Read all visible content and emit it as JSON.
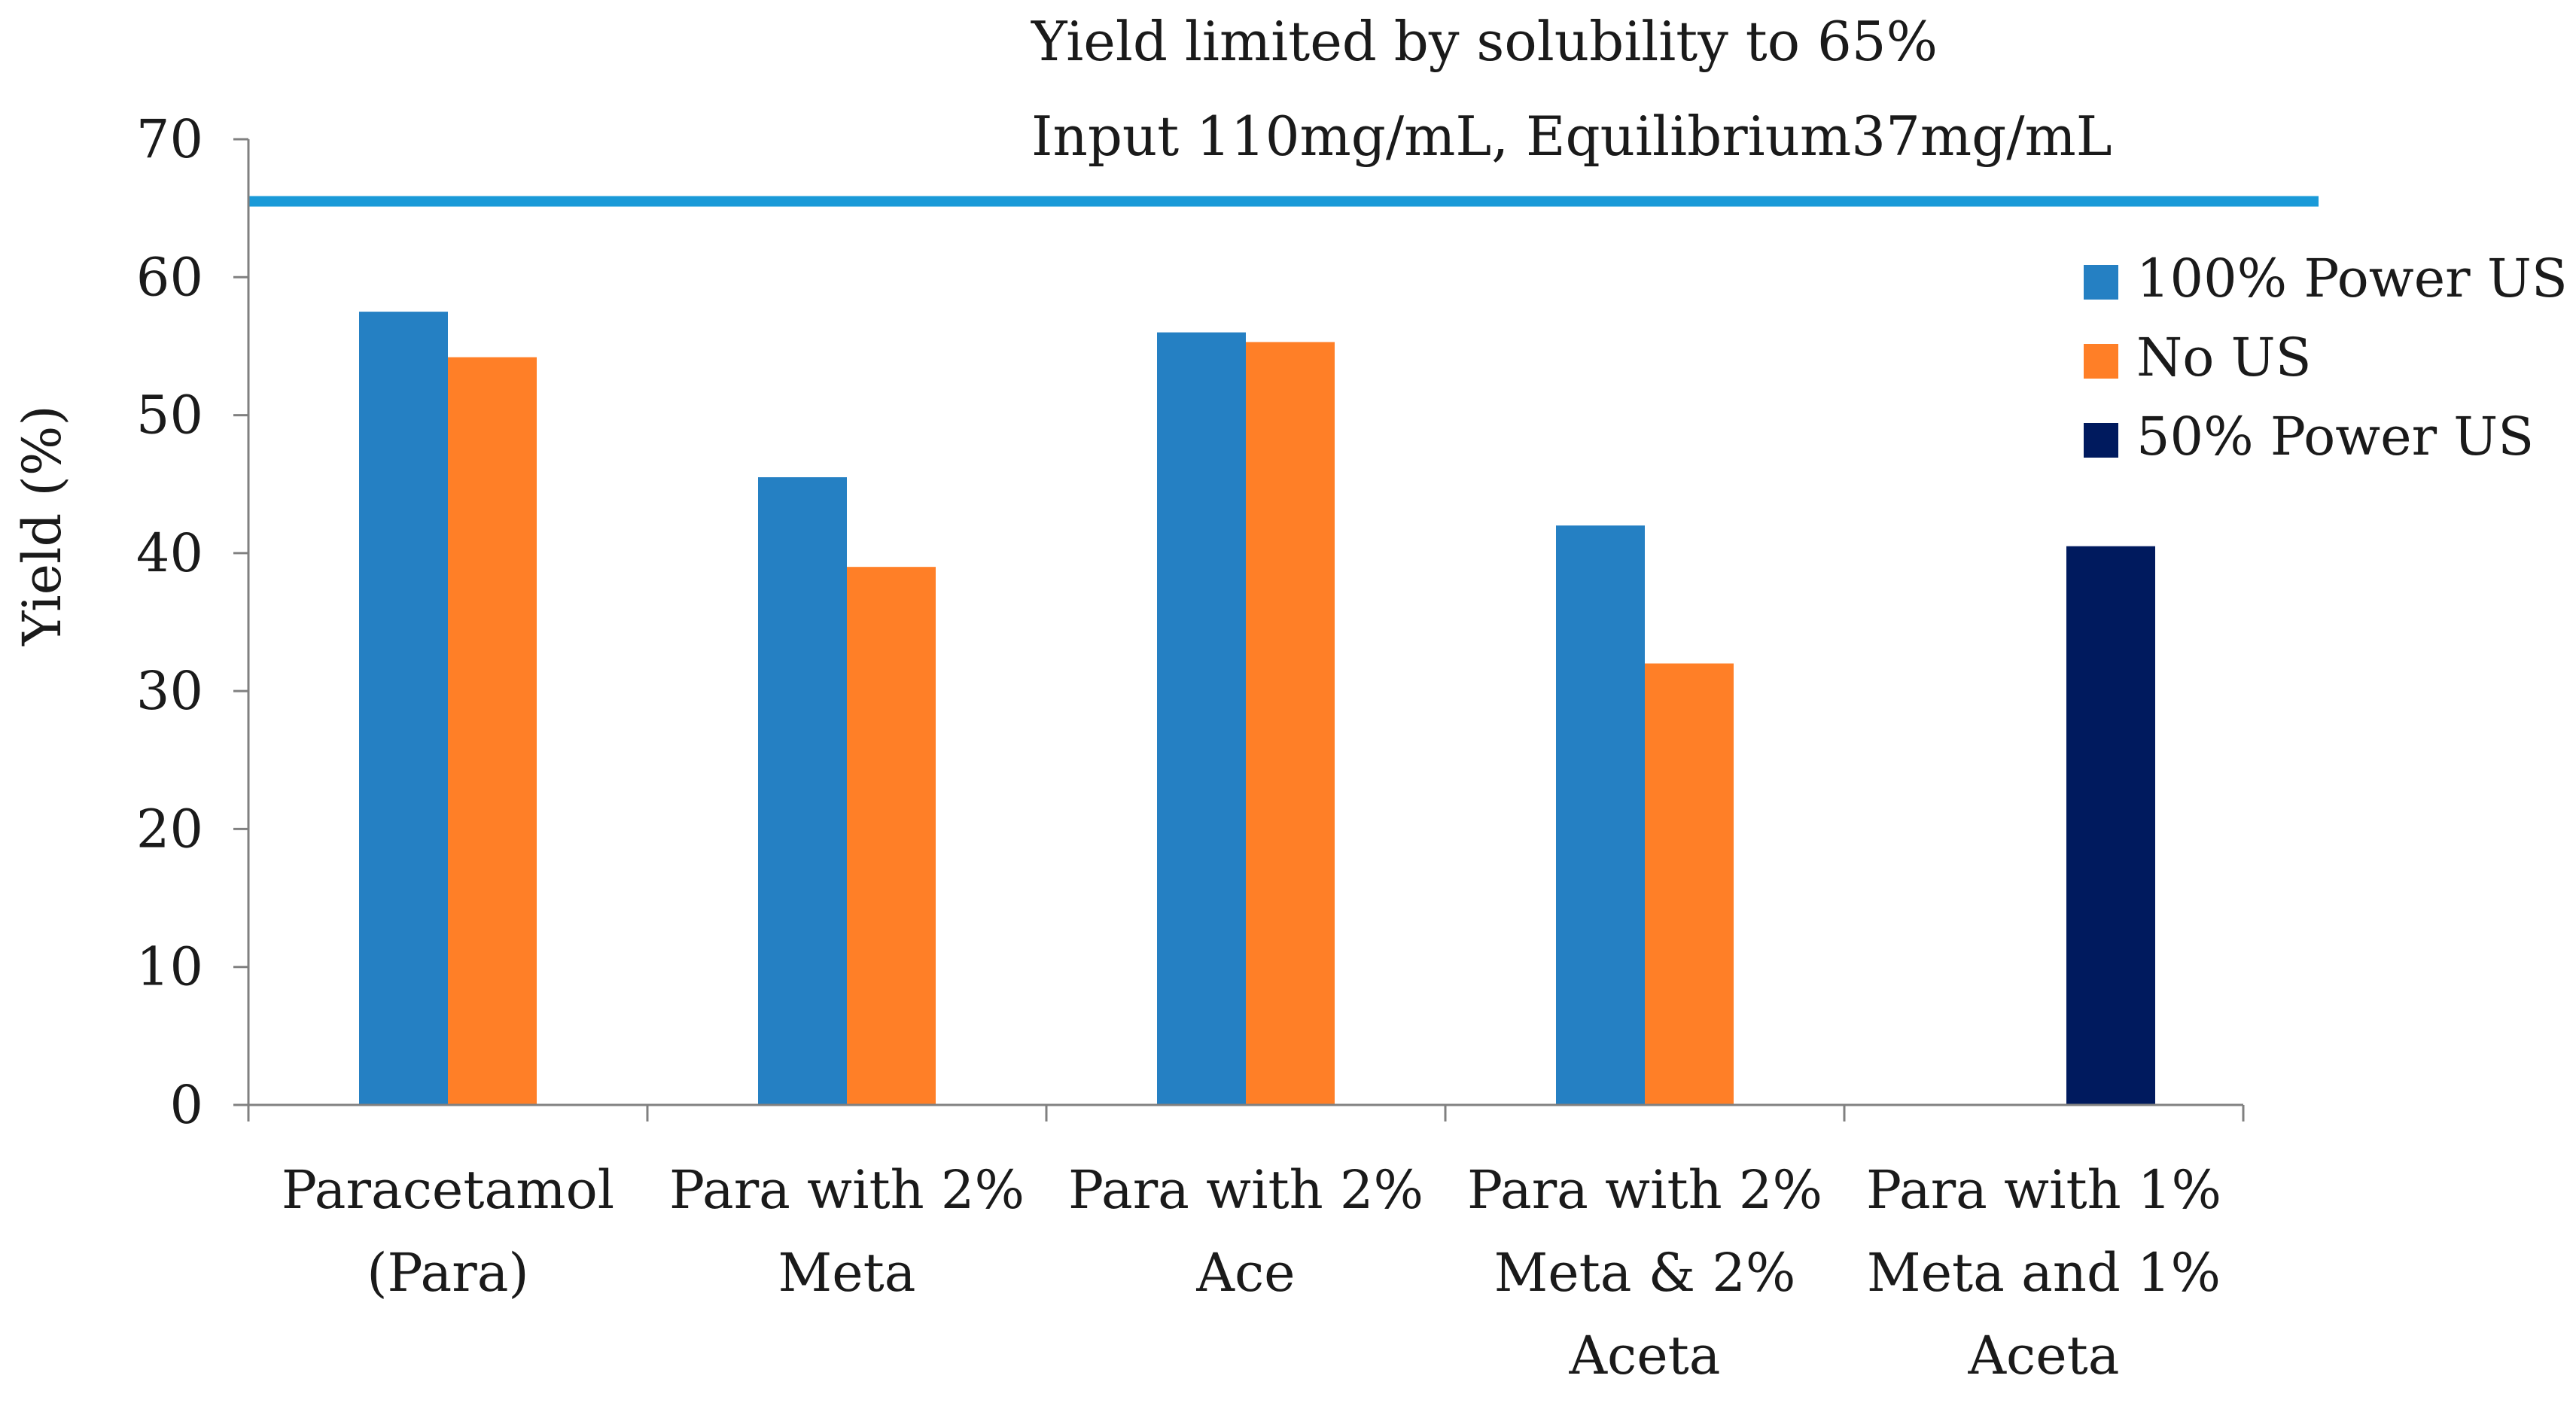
{
  "chart_data": {
    "type": "bar",
    "title": "",
    "xlabel": "",
    "ylabel": "Yield (%)",
    "ylim": [
      0,
      70
    ],
    "yticks": [
      0,
      10,
      20,
      30,
      40,
      50,
      60,
      70
    ],
    "grid": false,
    "categories": [
      [
        "Paracetamol",
        "(Para)"
      ],
      [
        "Para with 2%",
        "Meta"
      ],
      [
        "Para with 2%",
        "Ace"
      ],
      [
        "Para with 2%",
        "Meta & 2%",
        "Aceta"
      ],
      [
        "Para with 1%",
        "Meta and 1%",
        "Aceta"
      ]
    ],
    "series": [
      {
        "name": "100% Power US",
        "color": "#2580C3",
        "values": [
          57.5,
          45.5,
          56.0,
          42.0,
          null
        ]
      },
      {
        "name": "No US",
        "color": "#FF7F27",
        "values": [
          54.2,
          39.0,
          55.3,
          32.0,
          null
        ]
      },
      {
        "name": "50% Power US",
        "color": "#001A5E",
        "values": [
          null,
          null,
          null,
          null,
          40.5
        ]
      }
    ],
    "reference_line": {
      "value": 65.5,
      "color": "#1A9AD8"
    },
    "annotations": [
      "Yield limited by solubility to 65%",
      "Input 110mg/mL, Equilibrium37mg/mL"
    ],
    "legend_position": "right"
  }
}
